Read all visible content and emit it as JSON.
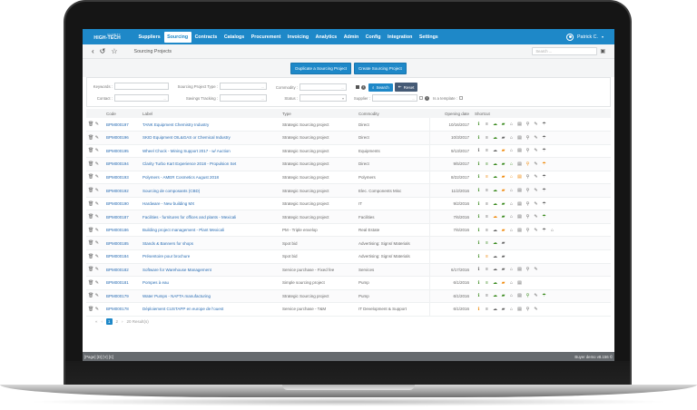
{
  "topnav": {
    "logo_small": "CLARITY",
    "logo_main": "HIGH-TECH",
    "items": [
      {
        "label": "Suppliers",
        "active": false
      },
      {
        "label": "Sourcing",
        "active": true
      },
      {
        "label": "Contracts",
        "active": false
      },
      {
        "label": "Catalogs",
        "active": false
      },
      {
        "label": "Procurement",
        "active": false
      },
      {
        "label": "Invoicing",
        "active": false
      },
      {
        "label": "Analytics",
        "active": false
      },
      {
        "label": "Admin",
        "active": false
      },
      {
        "label": "Config",
        "active": false
      },
      {
        "label": "Integration",
        "active": false
      },
      {
        "label": "Settings",
        "active": false
      }
    ],
    "user": "Patrick C."
  },
  "subbar": {
    "back_icon": "‹",
    "history_icon": "↺",
    "star_icon": "☆",
    "page_title": "Sourcing Projects",
    "search_placeholder": "Search ...",
    "cart_icon": "🛒"
  },
  "actions": {
    "duplicate": "Duplicate a Sourcing Project",
    "create": "Create Sourcing Project"
  },
  "filters": {
    "keywords": "Keywords :",
    "contact": "Contact :",
    "project_type": "Sourcing Project Type :",
    "savings_tracking": "Savings Tracking :",
    "commodity": "Commodity :",
    "status": "Status :",
    "supplier": "Supplier :",
    "is_template": "Is a template :",
    "search_btn": "Search",
    "reset_btn": "Reset",
    "ellipsis": "...",
    "dropdown_arrow": "▾"
  },
  "table": {
    "headers": {
      "code": "Code",
      "label": "Label",
      "type": "Type",
      "commodity": "Commodity",
      "date": "Opening date",
      "shortcut": "Shortcut"
    },
    "rows": [
      {
        "code": "BPM000197",
        "label": "TANK Equipment Chemistry Industry",
        "type": "Strategic Sourcing project",
        "commodity": "Direct",
        "date": "10/16/2017",
        "shortcuts": "g d g g d d d d d"
      },
      {
        "code": "BPM000196",
        "label": "SKID Equipment OIL&GAS or Chemical Industry",
        "type": "Strategic Sourcing project",
        "commodity": "Direct",
        "date": "10/3/2017",
        "shortcuts": "g d g d d d d d d"
      },
      {
        "code": "BPM000195",
        "label": "Wheel Chock - Mining Support 2017 - w/ Auction",
        "type": "Strategic Sourcing project",
        "commodity": "Equipments",
        "date": "9/13/2017",
        "shortcuts": "d d d o d d d d d"
      },
      {
        "code": "BPM000194",
        "label": "Clarity Turbo Kart Experience 2018 - Propulsion Set",
        "type": "Strategic Sourcing project",
        "commodity": "Direct",
        "date": "9/5/2017",
        "shortcuts": "g g g g g d o d o"
      },
      {
        "code": "BPM000193",
        "label": "Polymers - AMER Cosmetics August 2018",
        "type": "Strategic Sourcing project",
        "commodity": "Polymers",
        "date": "8/22/2017",
        "shortcuts": "g o g o o o d d d"
      },
      {
        "code": "BPM000192",
        "label": "Sourcing de composants (CBD)",
        "type": "Strategic Sourcing project",
        "commodity": "Elec. Components Misc",
        "date": "11/2/2016",
        "shortcuts": "g d g o d d d d d"
      },
      {
        "code": "BPM000190",
        "label": "Hardware - New building MX",
        "type": "Strategic Sourcing project",
        "commodity": "IT",
        "date": "9/2/2016",
        "shortcuts": "g d g g d d d d d"
      },
      {
        "code": "BPM000187",
        "label": "Facilities - furnitures for offices and plants - Mexicali",
        "type": "Strategic Sourcing project",
        "commodity": "Facilities",
        "date": "7/6/2016",
        "shortcuts": "g d o g d d d d g"
      },
      {
        "code": "BPM000186",
        "label": "Building project management - Plant Mexicali",
        "type": "PM - Triple envelop",
        "commodity": "Real Estate",
        "date": "7/6/2016",
        "shortcuts": "g d d o d d d d d d"
      },
      {
        "code": "BPM000185",
        "label": "Stands & Banners for shops",
        "type": "Spot bid",
        "commodity": "Advertising: Signs/ Materials",
        "date": "",
        "shortcuts": "g g g d"
      },
      {
        "code": "BPM000184",
        "label": "Présentoire pour brochure",
        "type": "Spot bid",
        "commodity": "Advertising: Signs/ Materials",
        "date": "",
        "shortcuts": "g o d d"
      },
      {
        "code": "BPM000182",
        "label": "Software for Warehouse Management",
        "type": "Service purchase - Fixed fee",
        "commodity": "Services",
        "date": "6/17/2016",
        "shortcuts": "d d d d d d d d"
      },
      {
        "code": "BPM000181",
        "label": "Pompes à eau",
        "type": "Simple sourcing project",
        "commodity": "Pump",
        "date": "6/1/2016",
        "shortcuts": "g g g o d d"
      },
      {
        "code": "BPM000179",
        "label": "Water Pumps - NAFTA manufacturing",
        "type": "Strategic Sourcing project",
        "commodity": "Pump",
        "date": "6/1/2016",
        "shortcuts": "g d g g d d g d g"
      },
      {
        "code": "BPM000178",
        "label": "Déploiement CUSTAPP en europe de l'ouest",
        "type": "Service purchase - T&M",
        "commodity": "IT Development & Support",
        "date": "6/1/2016",
        "shortcuts": "o d d d d d d d"
      }
    ]
  },
  "pager": {
    "first": "«",
    "prev": "‹",
    "page1": "1",
    "page2": "2",
    "next": "›",
    "results": "20 Result(s)"
  },
  "status": {
    "left": "[Page] [D] [V] [C]",
    "right": "Buyer demo v8.156 ©"
  },
  "colors": {
    "brand": "#1e88c8",
    "green": "#3a8a1e",
    "orange": "#f08a0c",
    "reset": "#455a75"
  }
}
